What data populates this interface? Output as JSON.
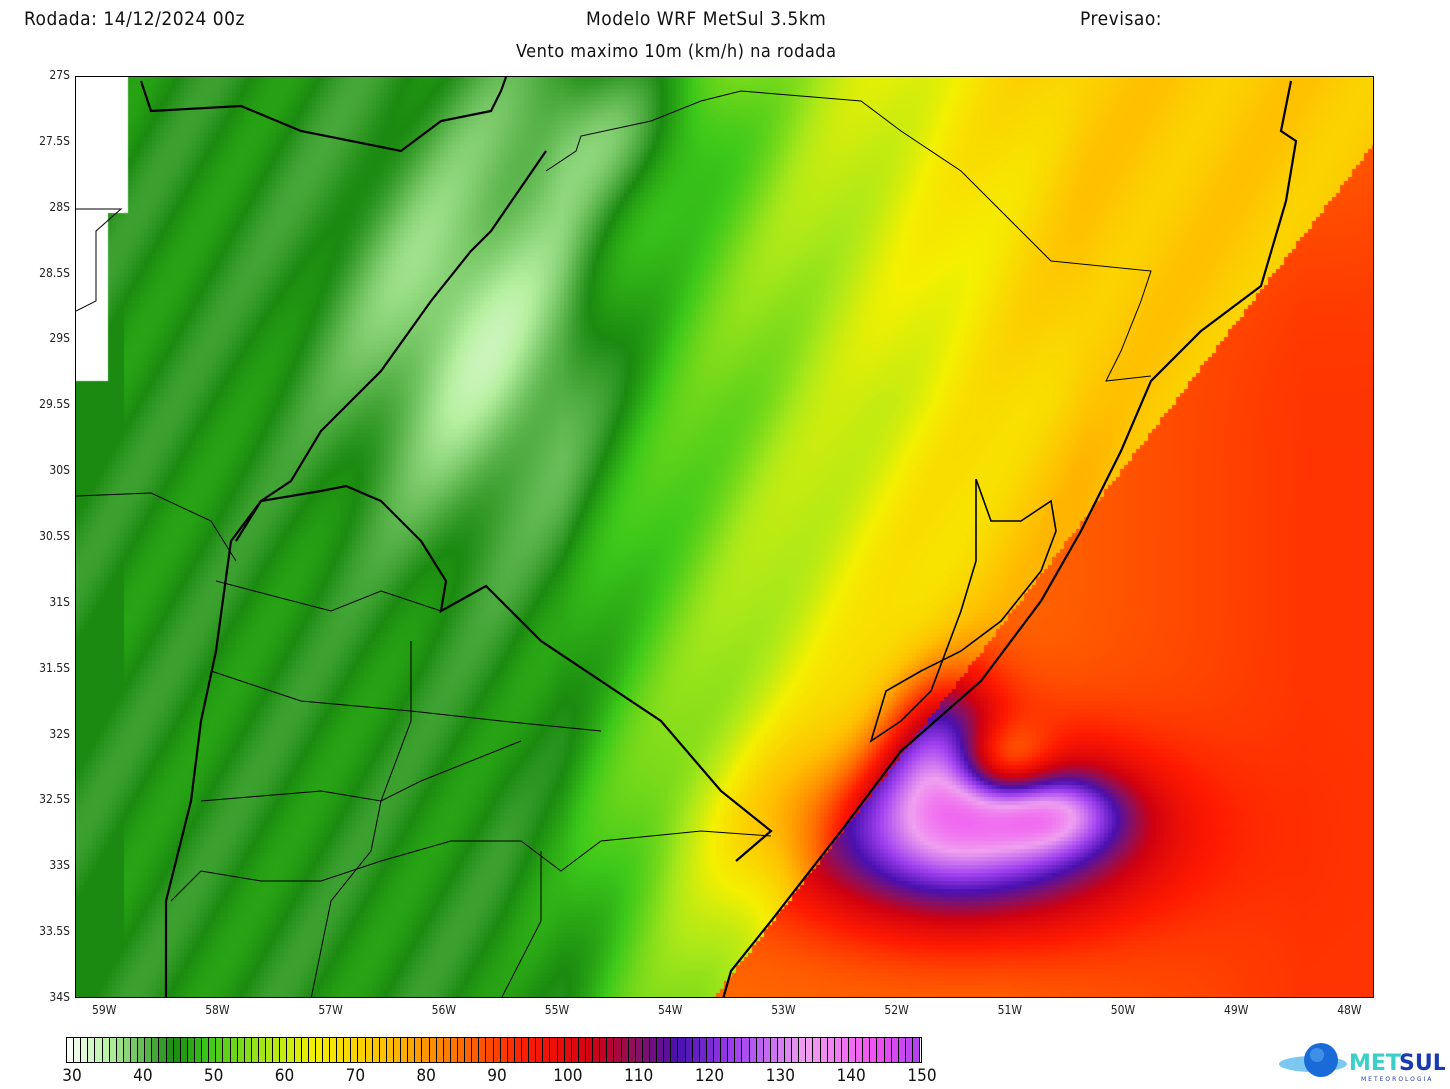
{
  "header": {
    "run": "Rodada: 14/12/2024 00z",
    "model": "Modelo WRF MetSul 3.5km",
    "forecast": "Previsao:",
    "subtitle": "Vento maximo 10m (km/h) na rodada"
  },
  "map": {
    "lat_ticks": [
      "27S",
      "27.5S",
      "28S",
      "28.5S",
      "29S",
      "29.5S",
      "30S",
      "30.5S",
      "31S",
      "31.5S",
      "32S",
      "32.5S",
      "33S",
      "33.5S",
      "34S"
    ],
    "lon_ticks": [
      "59W",
      "58W",
      "57W",
      "56W",
      "55W",
      "54W",
      "53W",
      "52W",
      "51W",
      "50W",
      "49W",
      "48W"
    ],
    "lat_range": [
      -34,
      -27
    ],
    "lon_range": [
      -59.24,
      -47.76
    ],
    "variable_units": "km/h"
  },
  "colorbar": {
    "min": 30,
    "max": 150,
    "step": 1,
    "labels": [
      "30",
      "40",
      "50",
      "60",
      "70",
      "80",
      "90",
      "100",
      "110",
      "120",
      "130",
      "140",
      "150"
    ],
    "stops": [
      [
        30,
        "#ffffff"
      ],
      [
        36,
        "#b6f0a0"
      ],
      [
        45,
        "#1a8a10"
      ],
      [
        50,
        "#3cc81a"
      ],
      [
        58,
        "#a8e81a"
      ],
      [
        65,
        "#f4f000"
      ],
      [
        75,
        "#ffc000"
      ],
      [
        84,
        "#ff7a00"
      ],
      [
        95,
        "#ff1a00"
      ],
      [
        104,
        "#d00010"
      ],
      [
        110,
        "#8a1060"
      ],
      [
        116,
        "#4a10b0"
      ],
      [
        124,
        "#a040f0"
      ],
      [
        134,
        "#f0a0f0"
      ],
      [
        144,
        "#f050f0"
      ],
      [
        150,
        "#b040f0"
      ]
    ]
  },
  "logo": {
    "brand": "METSUL",
    "tagline": "METEOROLOGIA"
  }
}
